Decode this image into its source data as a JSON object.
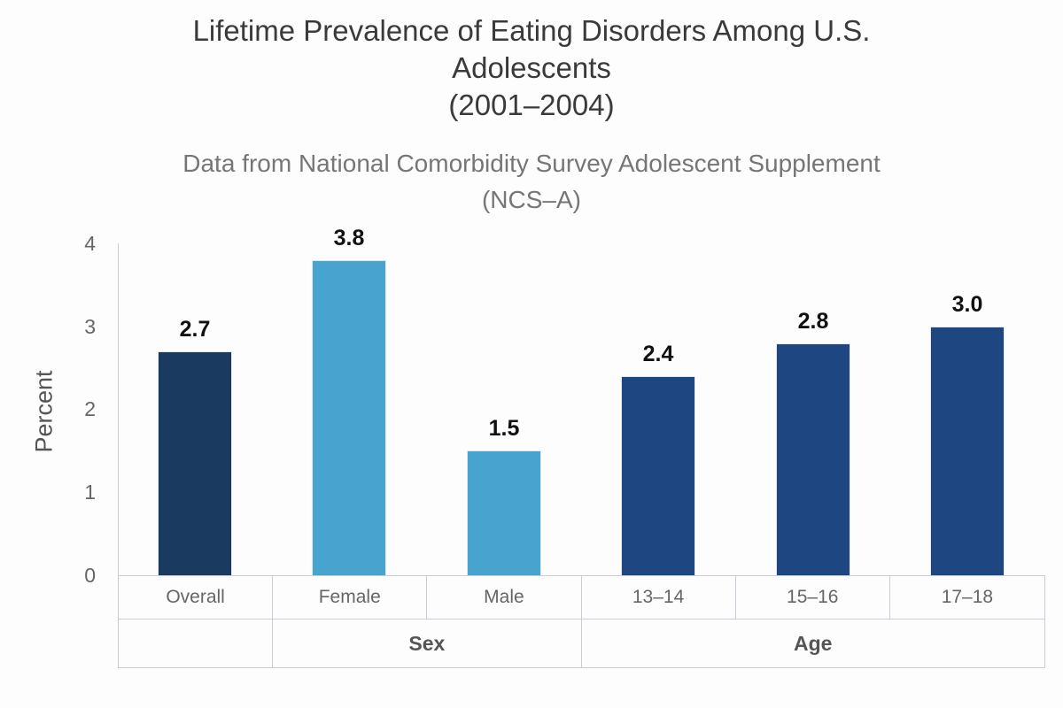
{
  "title": {
    "lines": [
      "Lifetime Prevalence of Eating Disorders Among U.S.",
      "Adolescents",
      "(2001–2004)"
    ]
  },
  "subtitle": {
    "lines": [
      "Data from National Comorbidity Survey Adolescent Supplement",
      "(NCS–A)"
    ]
  },
  "chart_data": {
    "type": "bar",
    "title": "Lifetime Prevalence of Eating Disorders Among U.S. Adolescents (2001–2004)",
    "subtitle": "Data from National Comorbidity Survey Adolescent Supplement (NCS–A)",
    "xlabel": "",
    "ylabel": "Percent",
    "ylim": [
      0,
      4
    ],
    "yticks": [
      "4",
      "3",
      "2",
      "1",
      "0"
    ],
    "grid": false,
    "legend": false,
    "categories": [
      "Overall",
      "Female",
      "Male",
      "13–14",
      "15–16",
      "17–18"
    ],
    "values": [
      2.7,
      3.8,
      1.5,
      2.4,
      2.8,
      3.0
    ],
    "value_labels": [
      "2.7",
      "3.8",
      "1.5",
      "2.4",
      "2.8",
      "3.0"
    ],
    "bar_colors": [
      "#1a3a5f",
      "#46a4ce",
      "#46a4ce",
      "#1e4781",
      "#1e4781",
      "#1e4781"
    ],
    "groups": [
      {
        "label": "",
        "span": 1
      },
      {
        "label": "Sex",
        "span": 2
      },
      {
        "label": "Age",
        "span": 3
      }
    ]
  },
  "colors": {
    "overall_bar": "#1a3a5f",
    "sex_bars": "#46a4ce",
    "age_bars": "#1e4781",
    "axis_line": "#cccfd6",
    "table_border": "#c8cdd6",
    "title_text": "#3a3a3a",
    "subtitle_text": "#767676",
    "tick_text": "#666666",
    "value_text": "#111111"
  }
}
